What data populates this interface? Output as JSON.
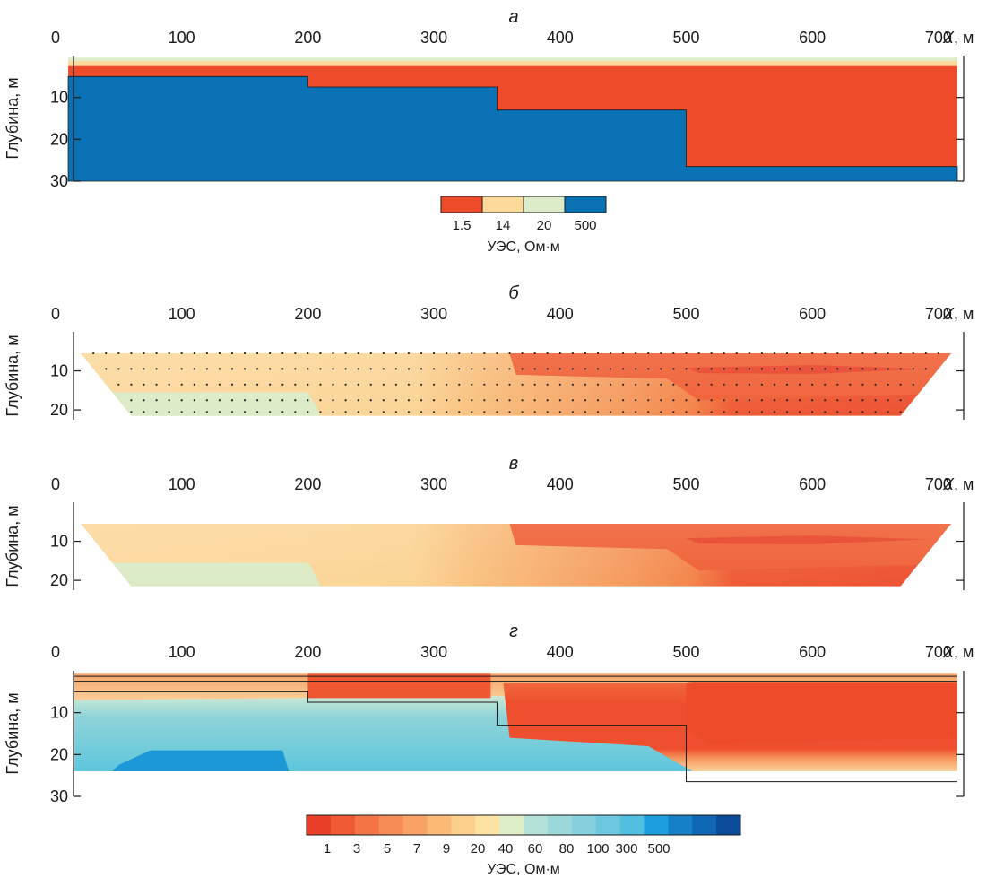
{
  "figure": {
    "x_axis_name": "X",
    "x_axis_unit": ", м",
    "y_axis_label": "Глубина, м",
    "x_ticks": [
      0,
      100,
      200,
      300,
      400,
      500,
      600,
      700
    ]
  },
  "colors": {
    "res_1_5": "#ee4b2b",
    "res_14": "#fbd99b",
    "res_20": "#dcebc8",
    "res_500": "#0a71b5",
    "scale_g": [
      "#e93f28",
      "#ef5a35",
      "#f37444",
      "#f68b53",
      "#f8a263",
      "#faba76",
      "#fbd08c",
      "#fde3a3",
      "#dcefc6",
      "#b3e0d7",
      "#9bd8d9",
      "#84d0dc",
      "#6cc8df",
      "#52bfe1",
      "#1c9fdc",
      "#1580c6",
      "#0f66b3",
      "#0a4c99"
    ]
  },
  "chart_data": [
    {
      "panel": "а",
      "type": "heatmap",
      "title": "а",
      "ylim": [
        0,
        30
      ],
      "y_ticks": [
        10,
        20,
        30
      ],
      "layers": [
        {
          "resistivity": 20,
          "x": [
            10,
            715
          ],
          "top": 0.5,
          "bottom": 1.3
        },
        {
          "resistivity": 14,
          "x": [
            10,
            715
          ],
          "top": 1.3,
          "bottom": 2.5
        },
        {
          "resistivity": 1.5,
          "x": [
            10,
            715
          ],
          "top": 2.5,
          "bottom": 30
        }
      ],
      "basement": {
        "resistivity": 500,
        "steps": [
          {
            "x": [
              10,
              200
            ],
            "top": 5
          },
          {
            "x": [
              200,
              350
            ],
            "top": 7.5
          },
          {
            "x": [
              350,
              500
            ],
            "top": 13
          },
          {
            "x": [
              500,
              715
            ],
            "top": 26.5
          }
        ]
      },
      "legend": {
        "labels": [
          "1.5",
          "14",
          "20",
          "500"
        ],
        "title": "УЭС, Ом·м"
      }
    },
    {
      "panel": "б",
      "type": "heatmap",
      "title": "б",
      "ylim": [
        0,
        22.5
      ],
      "y_ticks": [
        10,
        20
      ],
      "section": {
        "top_left": 20,
        "top_right": 710,
        "top_depth": 5.5,
        "bottom_left": 60,
        "bottom_right": 670,
        "bottom_depth": 21.5
      },
      "measurement_points": {
        "depths": [
          5.5,
          9.5,
          13.5,
          17.5,
          20.5
        ],
        "spacing": 10
      }
    },
    {
      "panel": "в",
      "type": "heatmap",
      "title": "в",
      "ylim": [
        0,
        22.5
      ],
      "y_ticks": [
        10,
        20
      ],
      "section": {
        "top_left": 20,
        "top_right": 710,
        "top_depth": 5.5,
        "bottom_left": 60,
        "bottom_right": 670,
        "bottom_depth": 21.5
      }
    },
    {
      "panel": "г",
      "type": "heatmap",
      "title": "г",
      "ylim": [
        0,
        30
      ],
      "y_ticks": [
        10,
        20,
        30
      ],
      "section": {
        "x": [
          15,
          715
        ],
        "top": 0.5,
        "bottom": 24
      },
      "model_boundaries": [
        {
          "points": [
            [
              15,
              1.3
            ],
            [
              715,
              1.3
            ]
          ]
        },
        {
          "points": [
            [
              15,
              2.5
            ],
            [
              715,
              2.5
            ]
          ]
        },
        {
          "points": [
            [
              15,
              5
            ],
            [
              200,
              5
            ],
            [
              200,
              7.5
            ],
            [
              350,
              7.5
            ],
            [
              350,
              13
            ],
            [
              500,
              13
            ],
            [
              500,
              26.5
            ],
            [
              715,
              26.5
            ]
          ]
        }
      ],
      "legend": {
        "labels": [
          "1",
          "3",
          "5",
          "7",
          "9",
          "20",
          "40",
          "60",
          "80",
          "100",
          "300",
          "500"
        ],
        "title": "УЭС, Ом·м"
      }
    }
  ]
}
